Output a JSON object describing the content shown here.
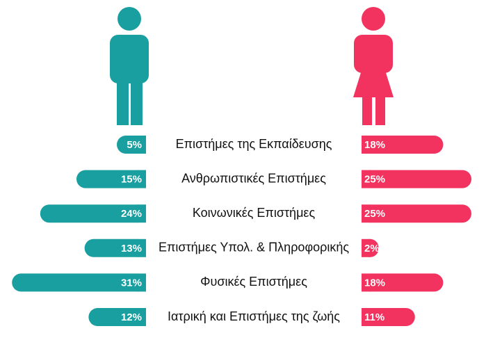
{
  "chart_data": {
    "type": "butterfly",
    "categories": [
      "Επιστήμες της Εκπαίδευσης",
      "Ανθρωπιστικές Επιστήμες",
      "Κοινωνικές Επιστήμες",
      "Επιστήμες Υπολ. & Πληροφορικής",
      "Φυσικές Επιστήμες",
      "Ιατρική και Επιστήμες της ζωής"
    ],
    "series": [
      {
        "color": "#1a9fa1",
        "values": [
          5,
          15,
          24,
          13,
          31,
          12
        ],
        "value_labels": [
          "5%",
          "15%",
          "24%",
          "13%",
          "31%",
          "12%"
        ]
      },
      {
        "color": "#f2325f",
        "values": [
          18,
          25,
          25,
          2,
          18,
          11
        ],
        "value_labels": [
          "18%",
          "25%",
          "25%",
          "2%",
          "18%",
          "11%"
        ]
      }
    ]
  }
}
